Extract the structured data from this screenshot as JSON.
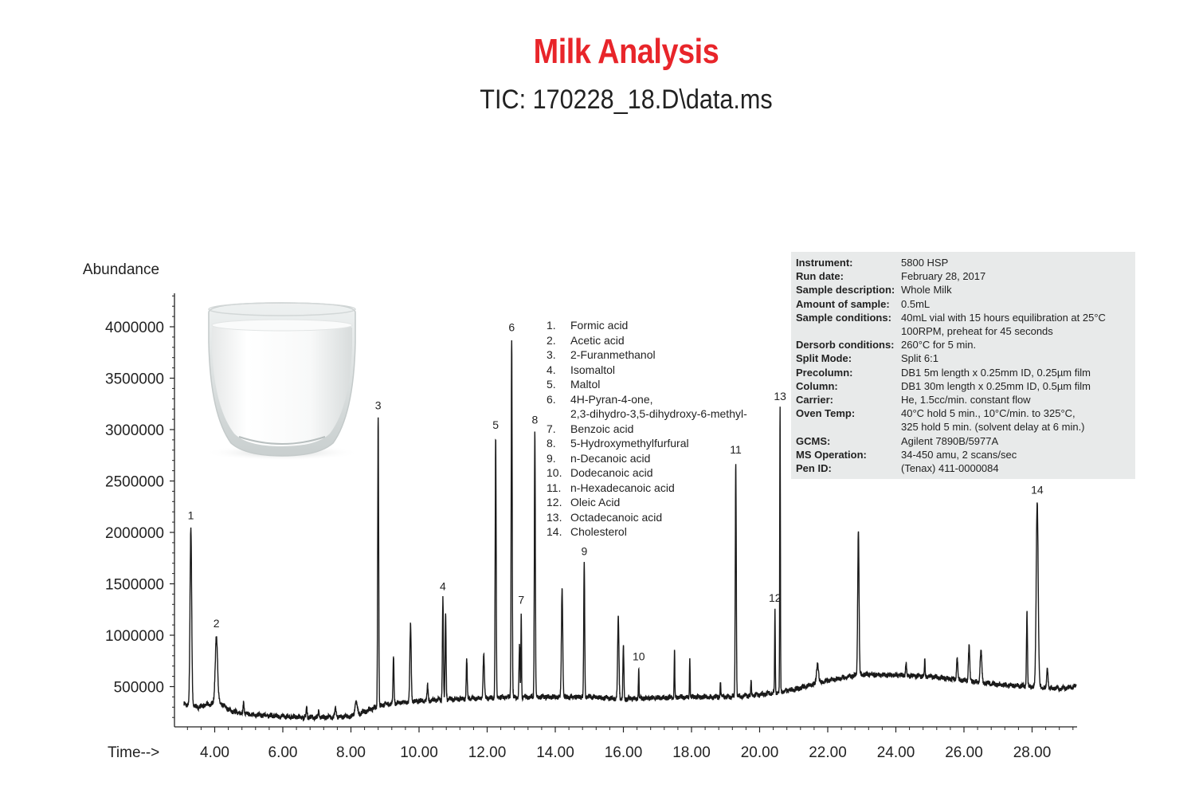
{
  "header": {
    "title": "Milk Analysis",
    "subtitle": "TIC: 170228_18.D\\data.ms"
  },
  "colors": {
    "title": "#e8252a",
    "trace": "#1a1a1a",
    "info_box_bg": "#e8eaea"
  },
  "image": {
    "name": "milk-glass",
    "description_icon": "glass-of-milk-icon"
  },
  "chart_data": {
    "type": "line",
    "title": "",
    "ylabel": "Abundance",
    "xlabel": "Time-->",
    "xlim": [
      3.1,
      29.3
    ],
    "ylim": [
      0,
      4400000
    ],
    "x_ticks": [
      4.0,
      6.0,
      8.0,
      10.0,
      12.0,
      14.0,
      16.0,
      18.0,
      20.0,
      22.0,
      24.0,
      26.0,
      28.0
    ],
    "x_tick_labels": [
      "4.00",
      "6.00",
      "8.00",
      "10.00",
      "12.00",
      "14.00",
      "16.00",
      "18.00",
      "20.00",
      "22.00",
      "24.00",
      "26.00",
      "28.00"
    ],
    "y_ticks": [
      500000,
      1000000,
      1500000,
      2000000,
      2500000,
      3000000,
      3500000,
      4000000
    ],
    "y_tick_labels": [
      "500000",
      "1000000",
      "1500000",
      "2000000",
      "2500000",
      "3000000",
      "3500000",
      "4000000"
    ],
    "grid": false,
    "baseline": [
      [
        3.1,
        330000
      ],
      [
        3.5,
        300000
      ],
      [
        4.1,
        350000
      ],
      [
        4.5,
        260000
      ],
      [
        5.0,
        230000
      ],
      [
        6.0,
        210000
      ],
      [
        7.0,
        200000
      ],
      [
        8.0,
        210000
      ],
      [
        8.6,
        280000
      ],
      [
        9.0,
        330000
      ],
      [
        10.0,
        360000
      ],
      [
        11.0,
        380000
      ],
      [
        12.0,
        390000
      ],
      [
        13.0,
        400000
      ],
      [
        14.0,
        400000
      ],
      [
        15.0,
        400000
      ],
      [
        16.0,
        380000
      ],
      [
        17.0,
        390000
      ],
      [
        18.0,
        400000
      ],
      [
        19.0,
        400000
      ],
      [
        20.0,
        420000
      ],
      [
        21.0,
        470000
      ],
      [
        22.0,
        560000
      ],
      [
        23.0,
        620000
      ],
      [
        24.0,
        610000
      ],
      [
        25.0,
        600000
      ],
      [
        26.0,
        560000
      ],
      [
        27.0,
        520000
      ],
      [
        28.0,
        500000
      ],
      [
        28.8,
        480000
      ],
      [
        29.3,
        500000
      ]
    ],
    "peaks": [
      {
        "x": 3.3,
        "y": 2050000,
        "w": 0.05,
        "label": "1"
      },
      {
        "x": 4.05,
        "y": 1000000,
        "w": 0.07,
        "label": "2"
      },
      {
        "x": 4.85,
        "y": 350000,
        "w": 0.03
      },
      {
        "x": 6.7,
        "y": 300000,
        "w": 0.03
      },
      {
        "x": 7.05,
        "y": 260000,
        "w": 0.03
      },
      {
        "x": 7.55,
        "y": 290000,
        "w": 0.04
      },
      {
        "x": 8.15,
        "y": 350000,
        "w": 0.07
      },
      {
        "x": 8.8,
        "y": 3120000,
        "w": 0.03,
        "label": "3"
      },
      {
        "x": 9.25,
        "y": 780000,
        "w": 0.03
      },
      {
        "x": 9.75,
        "y": 1100000,
        "w": 0.04
      },
      {
        "x": 10.25,
        "y": 520000,
        "w": 0.03
      },
      {
        "x": 10.7,
        "y": 1360000,
        "w": 0.03,
        "label": "4"
      },
      {
        "x": 10.78,
        "y": 1200000,
        "w": 0.03
      },
      {
        "x": 11.4,
        "y": 760000,
        "w": 0.03
      },
      {
        "x": 11.9,
        "y": 810000,
        "w": 0.04
      },
      {
        "x": 12.25,
        "y": 2930000,
        "w": 0.03,
        "label": "5"
      },
      {
        "x": 12.72,
        "y": 3880000,
        "w": 0.03,
        "label": "6"
      },
      {
        "x": 12.95,
        "y": 900000,
        "w": 0.03
      },
      {
        "x": 13.0,
        "y": 1230000,
        "w": 0.02,
        "label": "7"
      },
      {
        "x": 13.4,
        "y": 2980000,
        "w": 0.03,
        "label": "8"
      },
      {
        "x": 14.2,
        "y": 1460000,
        "w": 0.04
      },
      {
        "x": 14.85,
        "y": 1700000,
        "w": 0.03,
        "label": "9"
      },
      {
        "x": 15.85,
        "y": 1170000,
        "w": 0.04
      },
      {
        "x": 16.0,
        "y": 900000,
        "w": 0.03
      },
      {
        "x": 16.45,
        "y": 680000,
        "w": 0.02,
        "label": "10"
      },
      {
        "x": 17.5,
        "y": 860000,
        "w": 0.02
      },
      {
        "x": 17.95,
        "y": 780000,
        "w": 0.02
      },
      {
        "x": 18.85,
        "y": 550000,
        "w": 0.02
      },
      {
        "x": 19.3,
        "y": 2690000,
        "w": 0.03,
        "label": "11"
      },
      {
        "x": 19.75,
        "y": 550000,
        "w": 0.02
      },
      {
        "x": 20.45,
        "y": 1250000,
        "w": 0.02,
        "label": "12"
      },
      {
        "x": 20.6,
        "y": 3210000,
        "w": 0.02,
        "label": "13"
      },
      {
        "x": 21.7,
        "y": 730000,
        "w": 0.06
      },
      {
        "x": 22.9,
        "y": 2030000,
        "w": 0.04
      },
      {
        "x": 24.3,
        "y": 720000,
        "w": 0.03
      },
      {
        "x": 24.85,
        "y": 770000,
        "w": 0.02
      },
      {
        "x": 25.8,
        "y": 780000,
        "w": 0.04
      },
      {
        "x": 26.15,
        "y": 900000,
        "w": 0.04
      },
      {
        "x": 26.5,
        "y": 850000,
        "w": 0.05
      },
      {
        "x": 27.85,
        "y": 1220000,
        "w": 0.03
      },
      {
        "x": 28.15,
        "y": 2300000,
        "w": 0.06,
        "label": "14"
      },
      {
        "x": 28.45,
        "y": 680000,
        "w": 0.04
      }
    ]
  },
  "compounds": [
    {
      "num": "1.",
      "name": "Formic acid"
    },
    {
      "num": "2.",
      "name": "Acetic acid"
    },
    {
      "num": "3.",
      "name": "2-Furanmethanol"
    },
    {
      "num": "4.",
      "name": "Isomaltol"
    },
    {
      "num": "5.",
      "name": "Maltol"
    },
    {
      "num": "6.",
      "name": "4H-Pyran-4-one,"
    },
    {
      "num": "",
      "name": "2,3-dihydro-3,5-dihydroxy-6-methyl-"
    },
    {
      "num": "7.",
      "name": "Benzoic acid"
    },
    {
      "num": "8.",
      "name": "5-Hydroxymethylfurfural"
    },
    {
      "num": "9.",
      "name": "n-Decanoic acid"
    },
    {
      "num": "10.",
      "name": "Dodecanoic acid"
    },
    {
      "num": "11.",
      "name": "n-Hexadecanoic acid"
    },
    {
      "num": "12.",
      "name": "Oleic Acid"
    },
    {
      "num": "13.",
      "name": "Octadecanoic acid"
    },
    {
      "num": "14.",
      "name": "Cholesterol"
    }
  ],
  "info": [
    {
      "key": "Instrument:",
      "value": "5800 HSP"
    },
    {
      "key": "Run date:",
      "value": "February 28, 2017"
    },
    {
      "key": "Sample description:",
      "value": "Whole Milk"
    },
    {
      "key": "Amount of sample:",
      "value": "0.5mL"
    },
    {
      "key": "Sample conditions:",
      "value": "40mL vial with 15 hours equilibration at 25°C"
    },
    {
      "key": "",
      "value": "100RPM, preheat for 45 seconds"
    },
    {
      "key": "Dersorb conditions:",
      "value": "260°C for 5 min."
    },
    {
      "key": "Split Mode:",
      "value": "Split 6:1"
    },
    {
      "key": "Precolumn:",
      "value": "DB1 5m length x 0.25mm ID, 0.25µm film"
    },
    {
      "key": "Column:",
      "value": "DB1 30m length x 0.25mm ID, 0.5µm film"
    },
    {
      "key": "Carrier:",
      "value": "He, 1.5cc/min. constant flow"
    },
    {
      "key": "Oven Temp:",
      "value": "40°C hold 5 min., 10°C/min. to 325°C,"
    },
    {
      "key": "",
      "value": "325 hold 5 min. (solvent delay at 6 min.)"
    },
    {
      "key": "GCMS:",
      "value": "Agilent 7890B/5977A"
    },
    {
      "key": "MS Operation:",
      "value": "34-450 amu, 2 scans/sec"
    },
    {
      "key": "Pen ID:",
      "value": "(Tenax) 411-0000084"
    }
  ]
}
